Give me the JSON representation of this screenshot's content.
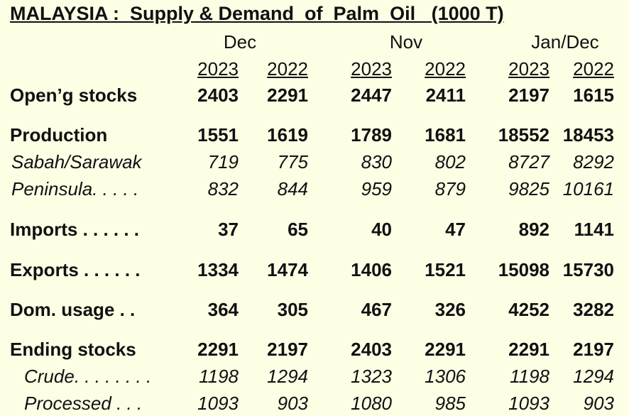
{
  "title": "MALAYSIA :  Supply & Demand  of  Palm  Oil   (1000 T)",
  "periods": [
    "Dec",
    "Nov",
    "Jan/Dec"
  ],
  "years": [
    "2023",
    "2022",
    "2023",
    "2022",
    "2023",
    "2022"
  ],
  "rows": [
    {
      "label": "Open’g stocks",
      "style": "bold",
      "values": [
        "2403",
        "2291",
        "2447",
        "2411",
        "2197",
        "1615"
      ]
    },
    {
      "label": "Production",
      "style": "bold",
      "values": [
        "1551",
        "1619",
        "1789",
        "1681",
        "18552",
        "18453"
      ]
    },
    {
      "label": "Sabah/Sarawak",
      "style": "sub",
      "values": [
        "719",
        "775",
        "830",
        "802",
        "8727",
        "8292"
      ]
    },
    {
      "label": "Peninsula. . . . .",
      "style": "sub",
      "values": [
        "832",
        "844",
        "959",
        "879",
        "9825",
        "10161"
      ]
    },
    {
      "label": "Imports . . . . . .",
      "style": "bold",
      "values": [
        "37",
        "65",
        "40",
        "47",
        "892",
        "1141"
      ]
    },
    {
      "label": "Exports . . . . . .",
      "style": "bold",
      "values": [
        "1334",
        "1474",
        "1406",
        "1521",
        "15098",
        "15730"
      ]
    },
    {
      "label": "Dom. usage  . .",
      "style": "bold",
      "values": [
        "364",
        "305",
        "467",
        "326",
        "4252",
        "3282"
      ]
    },
    {
      "label": "Ending stocks",
      "style": "bold",
      "values": [
        "2291",
        "2197",
        "2403",
        "2291",
        "2291",
        "2197"
      ]
    },
    {
      "label": "Crude. . . . . . . .",
      "style": "sub2",
      "values": [
        "1198",
        "1294",
        "1323",
        "1306",
        "1198",
        "1294"
      ]
    },
    {
      "label": "Processed . . .",
      "style": "sub2",
      "values": [
        "1093",
        "903",
        "1080",
        "985",
        "1093",
        "903"
      ]
    }
  ]
}
